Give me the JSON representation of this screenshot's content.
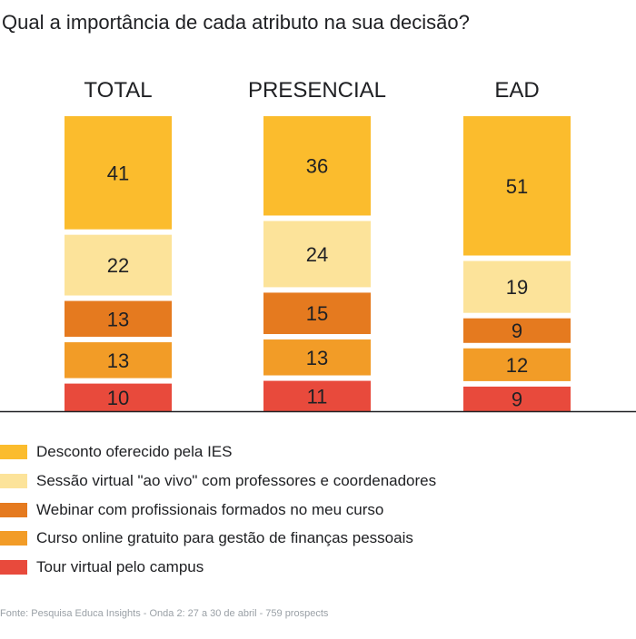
{
  "title": "Qual a importância de cada atributo na sua decisão?",
  "source": "Fonte: Pesquisa Educa Insights - Onda 2: 27 a 30 de abril - 759 prospects",
  "colors": {
    "Desconto oferecido pela IES": "#fbbc2d",
    "Sessão virtual \"ao vivo\" com professores e coordenadores": "#fce39a",
    "Webinar com profissionais formados no meu curso": "#e57a1f",
    "Curso online gratuito para gestão de finanças pessoais": "#f29c27",
    "Tour virtual pelo campus": "#e84a3c"
  },
  "chart_data": {
    "type": "bar",
    "stacked": true,
    "normalized": "percent",
    "categories": [
      "TOTAL",
      "PRESENCIAL",
      "EAD"
    ],
    "series": [
      {
        "name": "Desconto oferecido pela IES",
        "values": [
          41,
          36,
          51
        ]
      },
      {
        "name": "Sessão virtual \"ao vivo\" com professores e coordenadores",
        "values": [
          22,
          24,
          19
        ]
      },
      {
        "name": "Webinar com profissionais formados no meu curso",
        "values": [
          13,
          15,
          9
        ]
      },
      {
        "name": "Curso online gratuito para gestão de finanças pessoais",
        "values": [
          13,
          13,
          12
        ]
      },
      {
        "name": "Tour virtual pelo campus",
        "values": [
          10,
          11,
          9
        ]
      }
    ],
    "data_labels": true,
    "legend": "bottom",
    "grid": false
  }
}
